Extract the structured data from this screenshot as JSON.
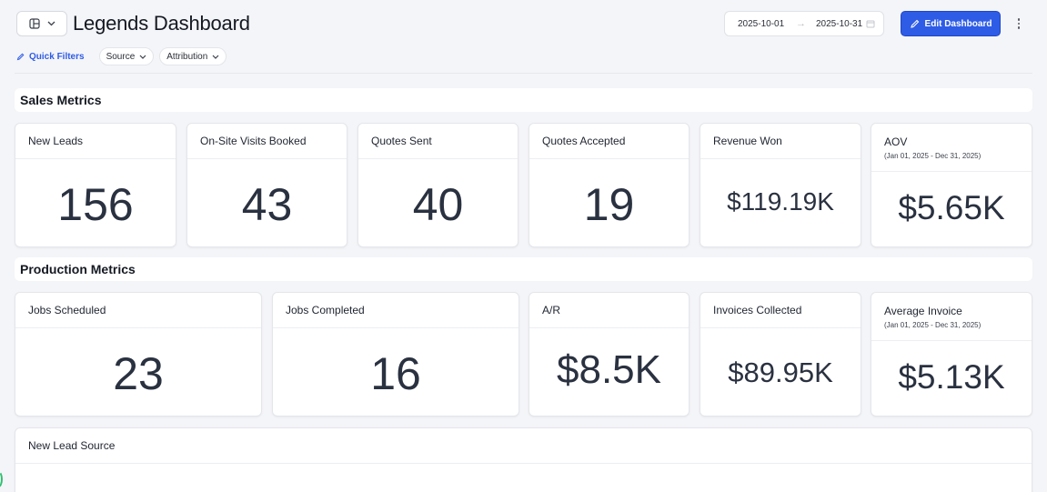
{
  "header": {
    "title": "Legends Dashboard",
    "date_start": "2025-10-01",
    "date_end": "2025-10-31",
    "edit_label": "Edit Dashboard"
  },
  "filters": {
    "quick_filters_label": "Quick Filters",
    "chips": [
      "Source",
      "Attribution"
    ]
  },
  "sections": {
    "sales_title": "Sales Metrics",
    "production_title": "Production Metrics"
  },
  "sales_cards": [
    {
      "title": "New Leads",
      "value": "156"
    },
    {
      "title": "On-Site Visits Booked",
      "value": "43"
    },
    {
      "title": "Quotes Sent",
      "value": "40"
    },
    {
      "title": "Quotes Accepted",
      "value": "19"
    },
    {
      "title": "Revenue Won",
      "value": "$119.19K"
    },
    {
      "title": "AOV",
      "subtitle": "(Jan 01, 2025 - Dec 31, 2025)",
      "value": "$5.65K"
    }
  ],
  "production_cards": [
    {
      "title": "Jobs Scheduled",
      "value": "23"
    },
    {
      "title": "Jobs Completed",
      "value": "16"
    },
    {
      "title": "A/R",
      "value": "$8.5K"
    },
    {
      "title": "Invoices Collected",
      "value": "$89.95K"
    },
    {
      "title": "Average Invoice",
      "subtitle": "(Jan 01, 2025 - Dec 31, 2025)",
      "value": "$5.13K"
    }
  ],
  "lead_source_card": {
    "title": "New Lead Source"
  },
  "colors": {
    "accent": "#2e5ce6",
    "background": "#f4f5f8",
    "value_text": "#2a3140"
  },
  "icons": {
    "layout": "layout-panel-icon",
    "chevron": "chevron-down-icon",
    "calendar": "calendar-icon",
    "pencil": "pencil-icon",
    "more": "more-vertical-icon"
  }
}
